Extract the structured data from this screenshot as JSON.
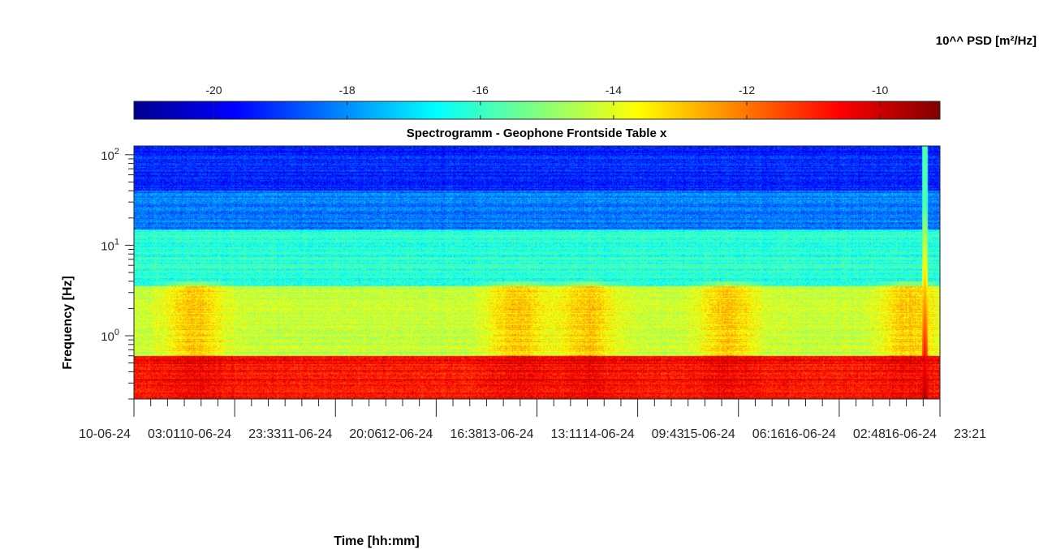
{
  "chart_data": {
    "type": "heatmap",
    "title": "Spectrogramm - Geophone Frontside Table x",
    "xlabel": "Time [hh:mm]",
    "ylabel": "Frequency [Hz]",
    "colorbar_label": "10^^ PSD [m²/Hz]",
    "colormap": "jet",
    "y_scale": "log",
    "ylim": [
      0.2,
      125
    ],
    "clim": [
      -21.2,
      -9.1
    ],
    "colorbar_ticks": [
      {
        "value": -20,
        "label": "-20"
      },
      {
        "value": -18,
        "label": "-18"
      },
      {
        "value": -16,
        "label": "-16"
      },
      {
        "value": -14,
        "label": "-14"
      },
      {
        "value": -12,
        "label": "-12"
      },
      {
        "value": -10,
        "label": "-10"
      }
    ],
    "y_ticks": [
      {
        "exp": 0,
        "base": "10",
        "sup": "0"
      },
      {
        "exp": 1,
        "base": "10",
        "sup": "1"
      },
      {
        "exp": 2,
        "base": "10",
        "sup": "2"
      }
    ],
    "x_ticks": [
      {
        "date": "10-06-24",
        "time": "03:01"
      },
      {
        "date": "10-06-24",
        "time": "23:33"
      },
      {
        "date": "11-06-24",
        "time": "20:06"
      },
      {
        "date": "12-06-24",
        "time": "16:38"
      },
      {
        "date": "13-06-24",
        "time": "13:11"
      },
      {
        "date": "14-06-24",
        "time": "09:43"
      },
      {
        "date": "15-06-24",
        "time": "06:16"
      },
      {
        "date": "16-06-24",
        "time": "02:48"
      },
      {
        "date": "16-06-24",
        "time": "23:21"
      }
    ],
    "bands": [
      {
        "f_min": 0.2,
        "f_max": 0.6,
        "log10_psd": -10.8
      },
      {
        "f_min": 0.6,
        "f_max": 3.5,
        "log10_psd": -14.3
      },
      {
        "f_min": 3.5,
        "f_max": 15,
        "log10_psd": -16.2
      },
      {
        "f_min": 15,
        "f_max": 40,
        "log10_psd": -18.2
      },
      {
        "f_min": 40,
        "f_max": 125,
        "log10_psd": -19.3
      }
    ],
    "daily_activity_peaks_x_index": [
      0.6,
      3.8,
      4.5,
      5.9,
      7.7
    ],
    "transient_event": {
      "x_index": 7.85,
      "log10_psd_peak": -9.3
    },
    "grid": false
  }
}
